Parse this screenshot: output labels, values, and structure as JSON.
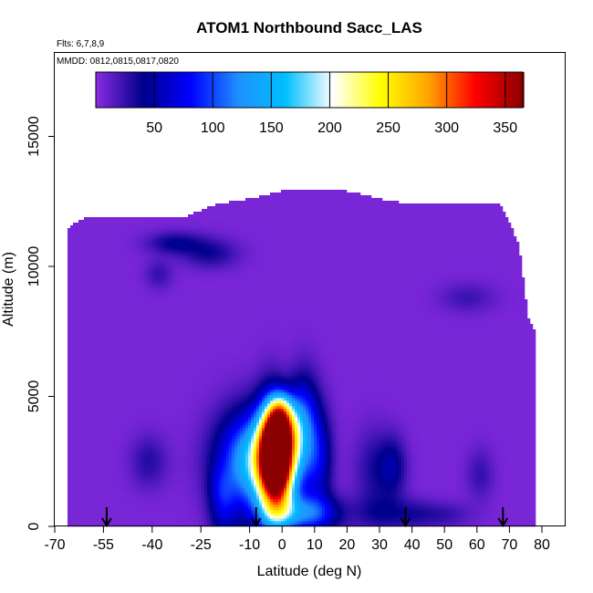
{
  "chart_data": {
    "type": "heatmap",
    "title": "ATOM1 Northbound Sacc_LAS",
    "flights_label": "Flts: 6,7,8,9",
    "dates_label": "MMDD: 0812,0815,0817,0820",
    "xlabel": "Latitude (deg N)",
    "ylabel": "Altitude (m)",
    "xlim": [
      -70,
      80
    ],
    "ylim": [
      0,
      17500
    ],
    "x_ticks": [
      -70,
      -55,
      -40,
      -25,
      -10,
      0,
      10,
      20,
      30,
      40,
      50,
      60,
      70,
      80
    ],
    "x_tick_labels": [
      "-70",
      "-55",
      "-40",
      "-25",
      "-10",
      "0",
      "10",
      "20",
      "30",
      "40",
      "50",
      "60",
      "70",
      "80"
    ],
    "y_ticks": [
      0,
      5000,
      10000,
      15000
    ],
    "y_tick_labels": [
      "0",
      "5000",
      "10000",
      "15000"
    ],
    "colorbar": {
      "range": [
        0,
        365
      ],
      "ticks": [
        50,
        100,
        150,
        200,
        250,
        300,
        350
      ],
      "tick_labels": [
        "50",
        "100",
        "150",
        "200",
        "250",
        "300",
        "350"
      ],
      "colors": [
        "#8a2be2",
        "#00008b",
        "#0000ff",
        "#1e90ff",
        "#00bfff",
        "#ffffff",
        "#ffff00",
        "#ffa500",
        "#ff0000",
        "#8b0000"
      ]
    },
    "background_value": 5,
    "top_profile": {
      "x": [
        -69,
        -66,
        -60,
        -50,
        -40,
        -30,
        -20,
        -10,
        0,
        10,
        20,
        30,
        40,
        50,
        60,
        67,
        69,
        71,
        73,
        76,
        78
      ],
      "alt": [
        11400,
        11500,
        11900,
        11900,
        11900,
        11900,
        12400,
        12600,
        12900,
        12900,
        12900,
        12600,
        12400,
        12400,
        12400,
        12400,
        12000,
        11400,
        10800,
        7900,
        7500
      ]
    },
    "features": [
      {
        "x": -7.5,
        "alt": 2500,
        "sx": 8,
        "sy": 1300,
        "value": 165
      },
      {
        "x": -3.5,
        "alt": 2300,
        "sx": 3,
        "sy": 1700,
        "value": 110
      },
      {
        "x": -2.5,
        "alt": 2800,
        "sx": 3.5,
        "sy": 1100,
        "value": 220
      },
      {
        "x": -1.0,
        "alt": 2800,
        "sx": 2.5,
        "sy": 900,
        "value": 145
      },
      {
        "x": -0.5,
        "alt": 3800,
        "sx": 3,
        "sy": 700,
        "value": 150
      },
      {
        "x": -0.5,
        "alt": 4500,
        "sx": 2.5,
        "sy": 500,
        "value": 70
      },
      {
        "x": 0,
        "alt": 1500,
        "sx": 3,
        "sy": 1000,
        "value": 80
      },
      {
        "x": 1,
        "alt": 500,
        "sx": 6,
        "sy": 500,
        "value": 70
      },
      {
        "x": 4,
        "alt": 3300,
        "sx": 3,
        "sy": 1100,
        "value": 90
      },
      {
        "x": 7,
        "alt": 4300,
        "sx": 3,
        "sy": 1200,
        "value": 55
      },
      {
        "x": 11,
        "alt": 2700,
        "sx": 3,
        "sy": 1300,
        "value": 60
      },
      {
        "x": 10,
        "alt": 500,
        "sx": 6,
        "sy": 500,
        "value": 70
      },
      {
        "x": -18,
        "alt": 500,
        "sx": 3,
        "sy": 800,
        "value": 40
      },
      {
        "x": -19,
        "alt": 1500,
        "sx": 2.5,
        "sy": 600,
        "value": 25
      },
      {
        "x": -41,
        "alt": 2500,
        "sx": 4,
        "sy": 700,
        "value": 25
      },
      {
        "x": -22,
        "alt": 10500,
        "sx": 6,
        "sy": 400,
        "value": 30
      },
      {
        "x": -33,
        "alt": 10900,
        "sx": 6,
        "sy": 300,
        "value": 35
      },
      {
        "x": -38,
        "alt": 9700,
        "sx": 3,
        "sy": 400,
        "value": 20
      },
      {
        "x": 28,
        "alt": 2200,
        "sx": 4,
        "sy": 1100,
        "value": 25
      },
      {
        "x": 34,
        "alt": 2300,
        "sx": 3,
        "sy": 800,
        "value": 40
      },
      {
        "x": 30,
        "alt": 500,
        "sx": 6,
        "sy": 500,
        "value": 25
      },
      {
        "x": 40,
        "alt": 500,
        "sx": 5,
        "sy": 400,
        "value": 20
      },
      {
        "x": 50,
        "alt": 450,
        "sx": 6,
        "sy": 350,
        "value": 20
      },
      {
        "x": 61,
        "alt": 2000,
        "sx": 3,
        "sy": 700,
        "value": 20
      },
      {
        "x": 57,
        "alt": 8800,
        "sx": 6,
        "sy": 400,
        "value": 18
      }
    ],
    "sounding_arrows_x": [
      -54,
      -8,
      38,
      68
    ]
  }
}
